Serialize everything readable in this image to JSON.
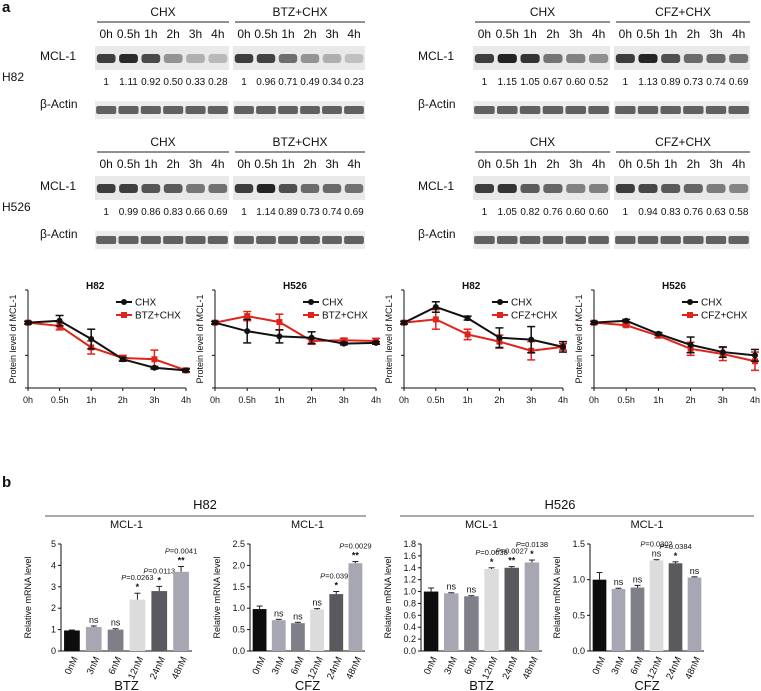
{
  "panel_labels": [
    "a",
    "b"
  ],
  "blot_row_labels": [
    "MCL-1",
    "β-Actin"
  ],
  "timepoints": [
    "0h",
    "0.5h",
    "1h",
    "2h",
    "3h",
    "4h"
  ],
  "blots": [
    {
      "cell": "H82",
      "treatments": [
        "CHX",
        "BTZ+CHX"
      ],
      "ratios": [
        [
          "1",
          "1.11",
          "0.92",
          "0.50",
          "0.33",
          "0.28"
        ],
        [
          "1",
          "0.96",
          "0.71",
          "0.49",
          "0.34",
          "0.23"
        ]
      ]
    },
    {
      "cell": "",
      "treatments": [
        "CHX",
        "CFZ+CHX"
      ],
      "ratios": [
        [
          "1",
          "1.15",
          "1.05",
          "0.67",
          "0.60",
          "0.52"
        ],
        [
          "1",
          "1.13",
          "0.89",
          "0.73",
          "0.74",
          "0.69"
        ]
      ]
    },
    {
      "cell": "H526",
      "treatments": [
        "CHX",
        "BTZ+CHX"
      ],
      "ratios": [
        [
          "1",
          "0.99",
          "0.86",
          "0.83",
          "0.66",
          "0.69"
        ],
        [
          "1",
          "1.14",
          "0.89",
          "0.73",
          "0.74",
          "0.69"
        ]
      ]
    },
    {
      "cell": "",
      "treatments": [
        "CHX",
        "CFZ+CHX"
      ],
      "ratios": [
        [
          "1",
          "1.05",
          "0.82",
          "0.76",
          "0.60",
          "0.60"
        ],
        [
          "1",
          "0.94",
          "0.83",
          "0.76",
          "0.63",
          "0.58"
        ]
      ]
    }
  ],
  "colors": {
    "chx": "#111111",
    "treat": "#e0241b",
    "bar_black": "#0d0d0d",
    "bar_gray_mid": "#a7a7b4",
    "bar_gray_dark": "#7f7f89",
    "bar_light": "#dcdcdc",
    "bar_dark": "#5a5a5e"
  },
  "section_headers": [
    "H82",
    "H526"
  ],
  "chart_data": [
    {
      "type": "line",
      "title": "H82",
      "xlabel": "",
      "ylabel": "Protein level of MCL-1",
      "categories": [
        "0h",
        "0.5h",
        "1h",
        "2h",
        "3h",
        "4h"
      ],
      "ylim": [
        0,
        1.5
      ],
      "series": [
        {
          "name": "CHX",
          "values": [
            1,
            1.03,
            0.75,
            0.44,
            0.31,
            0.27
          ],
          "errors": [
            0.02,
            0.08,
            0.15,
            0.03,
            0.02,
            0.02
          ]
        },
        {
          "name": "BTZ+CHX",
          "values": [
            1,
            0.95,
            0.62,
            0.46,
            0.44,
            0.27
          ],
          "errors": [
            0.02,
            0.06,
            0.1,
            0.04,
            0.14,
            0.03
          ]
        }
      ]
    },
    {
      "type": "line",
      "title": "H526",
      "xlabel": "",
      "ylabel": "Protein level of MCL-1",
      "categories": [
        "0h",
        "0.5h",
        "1h",
        "2h",
        "3h",
        "4h"
      ],
      "ylim": [
        0,
        1.5
      ],
      "series": [
        {
          "name": "CHX",
          "values": [
            1,
            0.87,
            0.79,
            0.77,
            0.68,
            0.69
          ],
          "errors": [
            0.02,
            0.18,
            0.1,
            0.09,
            0.02,
            0.02
          ]
        },
        {
          "name": "BTZ+CHX",
          "values": [
            1,
            1.1,
            1.01,
            0.72,
            0.73,
            0.72
          ],
          "errors": [
            0.02,
            0.07,
            0.12,
            0.05,
            0.03,
            0.04
          ]
        }
      ]
    },
    {
      "type": "line",
      "title": "H82",
      "xlabel": "",
      "ylabel": "Protein level of MCL-1",
      "categories": [
        "0h",
        "0.5h",
        "1h",
        "2h",
        "3h",
        "4h"
      ],
      "ylim": [
        0,
        1.5
      ],
      "series": [
        {
          "name": "CHX",
          "values": [
            1,
            1.24,
            1.07,
            0.77,
            0.74,
            0.63
          ],
          "errors": [
            0.02,
            0.08,
            0.03,
            0.15,
            0.2,
            0.08
          ]
        },
        {
          "name": "CFZ+CHX",
          "values": [
            1,
            1.05,
            0.82,
            0.71,
            0.57,
            0.63
          ],
          "errors": [
            0.02,
            0.15,
            0.08,
            0.1,
            0.14,
            0.05
          ]
        }
      ]
    },
    {
      "type": "line",
      "title": "H526",
      "xlabel": "",
      "ylabel": "Protein level of MCL-1",
      "categories": [
        "0h",
        "0.5h",
        "1h",
        "2h",
        "3h",
        "4h"
      ],
      "ylim": [
        0,
        1.5
      ],
      "series": [
        {
          "name": "CHX",
          "values": [
            1,
            1.03,
            0.83,
            0.66,
            0.55,
            0.5
          ],
          "errors": [
            0.02,
            0.02,
            0.02,
            0.12,
            0.08,
            0.09
          ]
        },
        {
          "name": "CFZ+CHX",
          "values": [
            1,
            0.96,
            0.8,
            0.6,
            0.52,
            0.41
          ],
          "errors": [
            0.02,
            0.02,
            0.03,
            0.1,
            0.1,
            0.14
          ]
        }
      ]
    },
    {
      "type": "bar",
      "title": "MCL-1",
      "group": "H82",
      "drug": "BTZ",
      "ylabel": "Relative mRNA level",
      "ylim": [
        0,
        5
      ],
      "yticks": [
        0,
        1,
        2,
        3,
        4,
        5
      ],
      "categories": [
        "0nM",
        "3nM",
        "6nM",
        "12nM",
        "24nM",
        "48nM"
      ],
      "values": [
        0.96,
        1.12,
        1.0,
        2.4,
        2.8,
        3.7
      ],
      "errors": [
        0.02,
        0.05,
        0.04,
        0.3,
        0.22,
        0.25
      ],
      "sig": [
        "",
        "ns",
        "ns",
        "*",
        "*",
        "**"
      ],
      "pvalues": [
        "",
        "",
        "",
        "P=0.0263",
        "P=0.0113",
        "P=0.0041"
      ]
    },
    {
      "type": "bar",
      "title": "MCL-1",
      "group": "H82",
      "drug": "CFZ",
      "ylabel": "Relative mRNA level",
      "ylim": [
        0,
        2.5
      ],
      "yticks": [
        0,
        0.5,
        1,
        1.5,
        2,
        2.5
      ],
      "categories": [
        "0nM",
        "3nM",
        "6nM",
        "12nM",
        "24nM",
        "48nM"
      ],
      "values": [
        0.98,
        0.72,
        0.65,
        0.97,
        1.33,
        2.05
      ],
      "errors": [
        0.07,
        0.02,
        0.02,
        0.02,
        0.06,
        0.04
      ],
      "sig": [
        "",
        "ns",
        "ns",
        "ns",
        "*",
        "**"
      ],
      "pvalues": [
        "",
        "",
        "",
        "",
        "P=0.0391",
        "P=0.0029"
      ]
    },
    {
      "type": "bar",
      "title": "MCL-1",
      "group": "H526",
      "drug": "BTZ",
      "ylabel": "Relative mRNA level",
      "ylim": [
        0,
        1.8
      ],
      "yticks": [
        0,
        0.2,
        0.4,
        0.6,
        0.8,
        1.0,
        1.2,
        1.4,
        1.6,
        1.8
      ],
      "categories": [
        "0nM",
        "3nM",
        "6nM",
        "12nM",
        "24nM",
        "48nM"
      ],
      "values": [
        1.0,
        0.97,
        0.92,
        1.38,
        1.4,
        1.49
      ],
      "errors": [
        0.06,
        0.01,
        0.01,
        0.02,
        0.02,
        0.04
      ],
      "sig": [
        "",
        "ns",
        "ns",
        "*",
        "**",
        "*"
      ],
      "pvalues": [
        "",
        "",
        "",
        "P=0.0038",
        "P=0.0027",
        "P=0.0138"
      ]
    },
    {
      "type": "bar",
      "title": "MCL-1",
      "group": "H526",
      "drug": "CFZ",
      "ylabel": "Relative mRNA level",
      "ylim": [
        0,
        1.5
      ],
      "yticks": [
        0,
        0.5,
        1.0,
        1.5
      ],
      "categories": [
        "0nM",
        "3nM",
        "6nM",
        "12nM",
        "24nM",
        "48nM"
      ],
      "values": [
        1.0,
        0.87,
        0.89,
        1.27,
        1.23,
        1.03
      ],
      "errors": [
        0.1,
        0.01,
        0.03,
        0.01,
        0.02,
        0.01
      ],
      "sig": [
        "",
        "ns",
        "ns",
        "ns",
        "*",
        "ns"
      ],
      "pvalues": [
        "",
        "",
        "",
        "P=0.0302",
        "P=0.0384",
        ""
      ]
    }
  ]
}
